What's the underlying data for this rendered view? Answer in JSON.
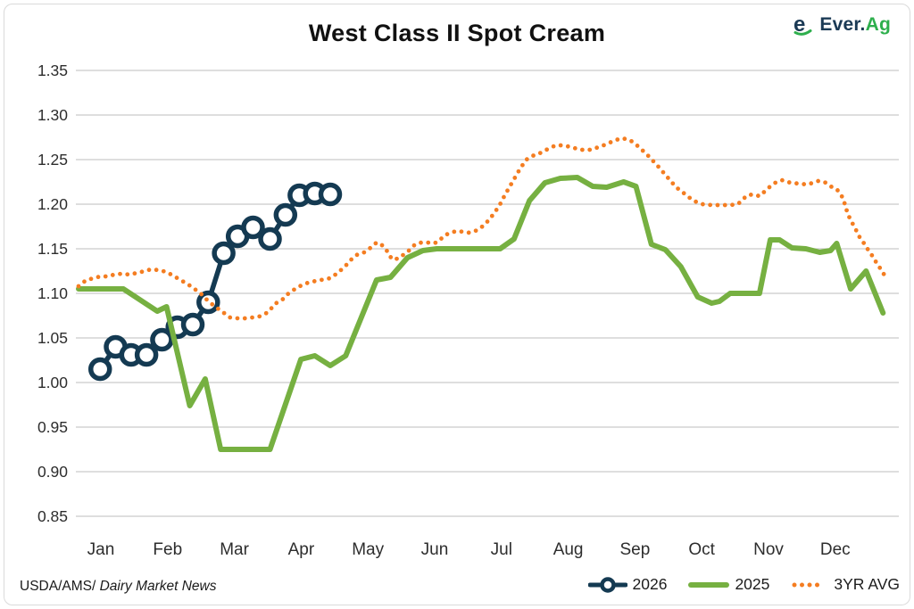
{
  "header": {
    "title": "West Class II Spot Cream",
    "logo": {
      "text_primary": "Ever.",
      "text_secondary": "Ag"
    }
  },
  "footer": {
    "source_prefix": "USDA/AMS",
    "source_name": "Dairy Market News"
  },
  "legend": [
    {
      "label": "2026",
      "color": "#143a52",
      "style": "solid-markers"
    },
    {
      "label": "2025",
      "color": "#76b041",
      "style": "solid"
    },
    {
      "label": "3YR AVG",
      "color": "#f47d21",
      "style": "dotted"
    }
  ],
  "colors": {
    "navy": "#143a52",
    "green": "#76b041",
    "orange": "#f47d21",
    "grid": "#c9c9c9",
    "axis_text": "#2d2d2d",
    "border": "#dadada",
    "logo_navy": "#1b3a55",
    "logo_green": "#2eaf4d"
  },
  "chart_data": {
    "type": "line",
    "title": "West Class II Spot Cream",
    "x_unit": "week-of-year",
    "x_labels": [
      "Jan",
      "Feb",
      "Mar",
      "Apr",
      "May",
      "Jun",
      "Jul",
      "Aug",
      "Sep",
      "Oct",
      "Nov",
      "Dec"
    ],
    "y_ticks": [
      1.35,
      1.3,
      1.25,
      1.2,
      1.15,
      1.1,
      1.05,
      1.0,
      0.95,
      0.9,
      0.85
    ],
    "ylim": [
      0.85,
      1.35
    ],
    "grid": "horizontal",
    "legend_position": "bottom-right",
    "series": [
      {
        "name": "2026",
        "color": "#143a52",
        "style": "solid-markers",
        "points": [
          [
            1.4,
            1.015
          ],
          [
            2.4,
            1.04
          ],
          [
            3.4,
            1.031
          ],
          [
            4.4,
            1.031
          ],
          [
            5.4,
            1.048
          ],
          [
            6.4,
            1.062
          ],
          [
            7.4,
            1.065
          ],
          [
            8.4,
            1.09
          ],
          [
            9.4,
            1.145
          ],
          [
            10.3,
            1.164
          ],
          [
            11.3,
            1.174
          ],
          [
            12.4,
            1.161
          ],
          [
            13.4,
            1.188
          ],
          [
            14.3,
            1.21
          ],
          [
            15.3,
            1.212
          ],
          [
            16.3,
            1.211
          ]
        ]
      },
      {
        "name": "2025",
        "color": "#76b041",
        "style": "solid",
        "points": [
          [
            0.0,
            1.105
          ],
          [
            2.9,
            1.105
          ],
          [
            5.1,
            1.08
          ],
          [
            5.7,
            1.085
          ],
          [
            7.2,
            0.974
          ],
          [
            8.2,
            1.004
          ],
          [
            9.2,
            0.925
          ],
          [
            12.4,
            0.925
          ],
          [
            14.4,
            1.026
          ],
          [
            15.3,
            1.03
          ],
          [
            16.3,
            1.019
          ],
          [
            17.3,
            1.03
          ],
          [
            19.3,
            1.115
          ],
          [
            20.2,
            1.118
          ],
          [
            21.3,
            1.14
          ],
          [
            22.3,
            1.148
          ],
          [
            23.2,
            1.15
          ],
          [
            27.3,
            1.15
          ],
          [
            28.2,
            1.161
          ],
          [
            29.2,
            1.204
          ],
          [
            30.2,
            1.224
          ],
          [
            31.2,
            1.229
          ],
          [
            32.3,
            1.23
          ],
          [
            33.3,
            1.22
          ],
          [
            34.2,
            1.219
          ],
          [
            35.3,
            1.225
          ],
          [
            36.1,
            1.22
          ],
          [
            37.1,
            1.155
          ],
          [
            38.0,
            1.149
          ],
          [
            39.0,
            1.13
          ],
          [
            40.1,
            1.096
          ],
          [
            41.0,
            1.089
          ],
          [
            41.5,
            1.091
          ],
          [
            42.2,
            1.1
          ],
          [
            44.1,
            1.1
          ],
          [
            44.8,
            1.16
          ],
          [
            45.4,
            1.16
          ],
          [
            46.2,
            1.151
          ],
          [
            47.1,
            1.15
          ],
          [
            48.0,
            1.146
          ],
          [
            48.7,
            1.148
          ],
          [
            49.1,
            1.156
          ],
          [
            50.0,
            1.105
          ],
          [
            51.0,
            1.125
          ],
          [
            52.1,
            1.078
          ]
        ]
      },
      {
        "name": "3YR AVG",
        "color": "#f47d21",
        "style": "dotted",
        "points": [
          [
            0.0,
            1.108
          ],
          [
            0.5,
            1.115
          ],
          [
            1.0,
            1.117
          ],
          [
            1.4,
            1.119
          ],
          [
            1.9,
            1.119
          ],
          [
            2.3,
            1.121
          ],
          [
            2.8,
            1.122
          ],
          [
            3.3,
            1.121
          ],
          [
            3.8,
            1.123
          ],
          [
            4.3,
            1.125
          ],
          [
            4.7,
            1.127
          ],
          [
            5.2,
            1.126
          ],
          [
            5.7,
            1.124
          ],
          [
            6.2,
            1.119
          ],
          [
            6.6,
            1.115
          ],
          [
            7.1,
            1.11
          ],
          [
            7.5,
            1.105
          ],
          [
            7.9,
            1.1
          ],
          [
            8.3,
            1.093
          ],
          [
            8.7,
            1.087
          ],
          [
            9.1,
            1.082
          ],
          [
            9.5,
            1.077
          ],
          [
            9.8,
            1.073
          ],
          [
            10.3,
            1.072
          ],
          [
            10.8,
            1.072
          ],
          [
            11.3,
            1.073
          ],
          [
            11.7,
            1.074
          ],
          [
            12.3,
            1.079
          ],
          [
            12.7,
            1.088
          ],
          [
            13.2,
            1.093
          ],
          [
            13.6,
            1.1
          ],
          [
            14.2,
            1.107
          ],
          [
            14.7,
            1.111
          ],
          [
            15.1,
            1.113
          ],
          [
            15.7,
            1.115
          ],
          [
            16.3,
            1.117
          ],
          [
            16.8,
            1.123
          ],
          [
            17.3,
            1.131
          ],
          [
            17.6,
            1.137
          ],
          [
            18.0,
            1.143
          ],
          [
            18.5,
            1.146
          ],
          [
            18.9,
            1.151
          ],
          [
            19.3,
            1.157
          ],
          [
            19.6,
            1.155
          ],
          [
            20.0,
            1.147
          ],
          [
            20.3,
            1.138
          ],
          [
            20.7,
            1.139
          ],
          [
            21.1,
            1.144
          ],
          [
            21.4,
            1.148
          ],
          [
            21.8,
            1.155
          ],
          [
            22.2,
            1.157
          ],
          [
            22.6,
            1.157
          ],
          [
            23.0,
            1.156
          ],
          [
            23.3,
            1.158
          ],
          [
            23.7,
            1.165
          ],
          [
            24.1,
            1.168
          ],
          [
            24.5,
            1.17
          ],
          [
            24.9,
            1.169
          ],
          [
            25.3,
            1.168
          ],
          [
            25.7,
            1.17
          ],
          [
            26.0,
            1.173
          ],
          [
            26.3,
            1.177
          ],
          [
            26.7,
            1.185
          ],
          [
            27.0,
            1.192
          ],
          [
            27.3,
            1.2
          ],
          [
            27.6,
            1.21
          ],
          [
            28.0,
            1.222
          ],
          [
            28.3,
            1.231
          ],
          [
            28.6,
            1.24
          ],
          [
            29.0,
            1.25
          ],
          [
            29.5,
            1.255
          ],
          [
            30.0,
            1.258
          ],
          [
            30.4,
            1.262
          ],
          [
            30.9,
            1.266
          ],
          [
            31.4,
            1.266
          ],
          [
            31.9,
            1.264
          ],
          [
            32.5,
            1.261
          ],
          [
            33.1,
            1.261
          ],
          [
            33.5,
            1.263
          ],
          [
            34.0,
            1.266
          ],
          [
            34.4,
            1.269
          ],
          [
            34.8,
            1.272
          ],
          [
            35.2,
            1.274
          ],
          [
            35.7,
            1.272
          ],
          [
            36.1,
            1.267
          ],
          [
            36.8,
            1.256
          ],
          [
            37.5,
            1.243
          ],
          [
            38.1,
            1.231
          ],
          [
            38.7,
            1.219
          ],
          [
            39.3,
            1.211
          ],
          [
            39.8,
            1.204
          ],
          [
            40.4,
            1.2
          ],
          [
            41.0,
            1.199
          ],
          [
            41.6,
            1.199
          ],
          [
            42.2,
            1.199
          ],
          [
            42.7,
            1.2
          ],
          [
            43.0,
            1.205
          ],
          [
            43.3,
            1.21
          ],
          [
            43.7,
            1.211
          ],
          [
            44.1,
            1.209
          ],
          [
            44.8,
            1.22
          ],
          [
            45.2,
            1.225
          ],
          [
            45.6,
            1.227
          ],
          [
            46.1,
            1.224
          ],
          [
            46.7,
            1.223
          ],
          [
            47.2,
            1.222
          ],
          [
            47.9,
            1.226
          ],
          [
            48.3,
            1.225
          ],
          [
            48.7,
            1.22
          ],
          [
            49.1,
            1.217
          ],
          [
            49.5,
            1.207
          ],
          [
            49.8,
            1.19
          ],
          [
            50.0,
            1.182
          ],
          [
            50.3,
            1.173
          ],
          [
            50.5,
            1.165
          ],
          [
            50.8,
            1.158
          ],
          [
            51.0,
            1.152
          ],
          [
            51.3,
            1.145
          ],
          [
            51.5,
            1.139
          ],
          [
            51.8,
            1.131
          ],
          [
            52.0,
            1.126
          ],
          [
            52.2,
            1.12
          ]
        ]
      }
    ]
  }
}
